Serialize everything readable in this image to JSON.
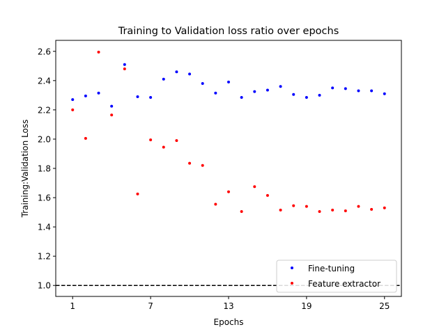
{
  "chart_data": {
    "type": "scatter",
    "title": "Training to Validation loss ratio over epochs",
    "xlabel": "Epochs",
    "ylabel": "Training:Validation Loss",
    "xlim": [
      -0.3,
      26.3
    ],
    "ylim": [
      0.925,
      2.675
    ],
    "xticks": [
      1,
      7,
      13,
      19,
      25
    ],
    "yticks": [
      1.0,
      1.2,
      1.4,
      1.6,
      1.8,
      2.0,
      2.2,
      2.4,
      2.6
    ],
    "ytick_labels": [
      "1.0",
      "1.2",
      "1.4",
      "1.6",
      "1.8",
      "2.0",
      "2.2",
      "2.4",
      "2.6"
    ],
    "xtick_labels": [
      "1",
      "7",
      "13",
      "19",
      "25"
    ],
    "x": [
      1,
      2,
      3,
      4,
      5,
      6,
      7,
      8,
      9,
      10,
      11,
      12,
      13,
      14,
      15,
      16,
      17,
      18,
      19,
      20,
      21,
      22,
      23,
      24,
      25
    ],
    "series": [
      {
        "name": "Fine-tuning",
        "color": "#0000ff",
        "values": [
          2.27,
          2.295,
          2.315,
          2.225,
          2.51,
          2.29,
          2.285,
          2.41,
          2.46,
          2.445,
          2.38,
          2.315,
          2.39,
          2.285,
          2.325,
          2.335,
          2.36,
          2.305,
          2.285,
          2.3,
          2.35,
          2.345,
          2.33,
          2.33,
          2.31
        ]
      },
      {
        "name": "Feature extractor",
        "color": "#ff0000",
        "values": [
          2.2,
          2.005,
          2.595,
          2.165,
          2.48,
          1.625,
          1.995,
          1.945,
          1.99,
          1.835,
          1.82,
          1.555,
          1.64,
          1.505,
          1.675,
          1.615,
          1.515,
          1.545,
          1.54,
          1.505,
          1.515,
          1.51,
          1.54,
          1.52,
          1.53
        ]
      }
    ],
    "reference_line": {
      "y": 1.0,
      "style": "dashed",
      "color": "#000000"
    },
    "legend": {
      "position": "bottom-right"
    }
  }
}
